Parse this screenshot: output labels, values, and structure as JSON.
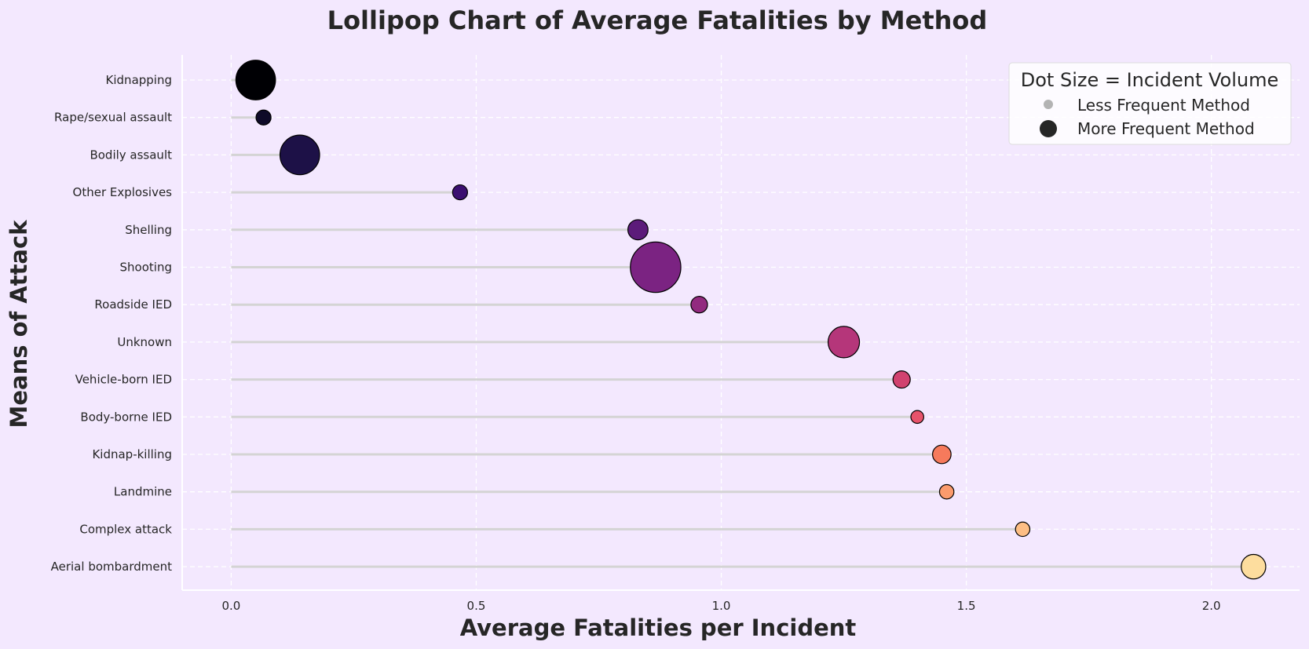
{
  "chart_data": {
    "type": "lollipop",
    "title": "Lollipop Chart of Average Fatalities by Method",
    "xlabel": "Average Fatalities per Incident",
    "ylabel": "Means of Attack",
    "xlim": [
      -0.1,
      2.18
    ],
    "xticks": [
      0.0,
      0.5,
      1.0,
      1.5,
      2.0
    ],
    "xtick_labels": [
      "0.0",
      "0.5",
      "1.0",
      "1.5",
      "2.0"
    ],
    "grid": true,
    "categories": [
      "Kidnapping",
      "Rape/sexual assault",
      "Bodily assault",
      "Other Explosives",
      "Shelling",
      "Shooting",
      "Roadside IED",
      "Unknown",
      "Vehicle-born IED",
      "Body-borne IED",
      "Kidnap-killing",
      "Landmine",
      "Complex attack",
      "Aerial bombardment"
    ],
    "values": [
      0.05,
      0.066,
      0.14,
      0.467,
      0.83,
      0.866,
      0.955,
      1.25,
      1.368,
      1.4,
      1.45,
      1.46,
      1.615,
      2.086
    ],
    "incident_volume_relative": [
      0.4,
      0.02,
      0.4,
      0.02,
      0.06,
      0.72,
      0.03,
      0.22,
      0.035,
      0.01,
      0.045,
      0.017,
      0.017,
      0.11
    ],
    "colors": [
      "#000004",
      "#0e0a28",
      "#1d1147",
      "#3b0f70",
      "#5c1b7a",
      "#7b2382",
      "#922a7f",
      "#b5367a",
      "#d1426f",
      "#e7536b",
      "#f67a5c",
      "#fb9b6d",
      "#fdbe84",
      "#fddd9e"
    ],
    "legend": {
      "title": "Dot Size = Incident Volume",
      "position": "top-right",
      "entries": [
        {
          "label": "Less Frequent Method",
          "color": "#b3b3b3",
          "size": "small"
        },
        {
          "label": "More Frequent Method",
          "color": "#262626",
          "size": "large"
        }
      ]
    },
    "background": "#f3e8fe",
    "grid_color": "#ffffff",
    "stem_color": "#d4d4d4"
  }
}
